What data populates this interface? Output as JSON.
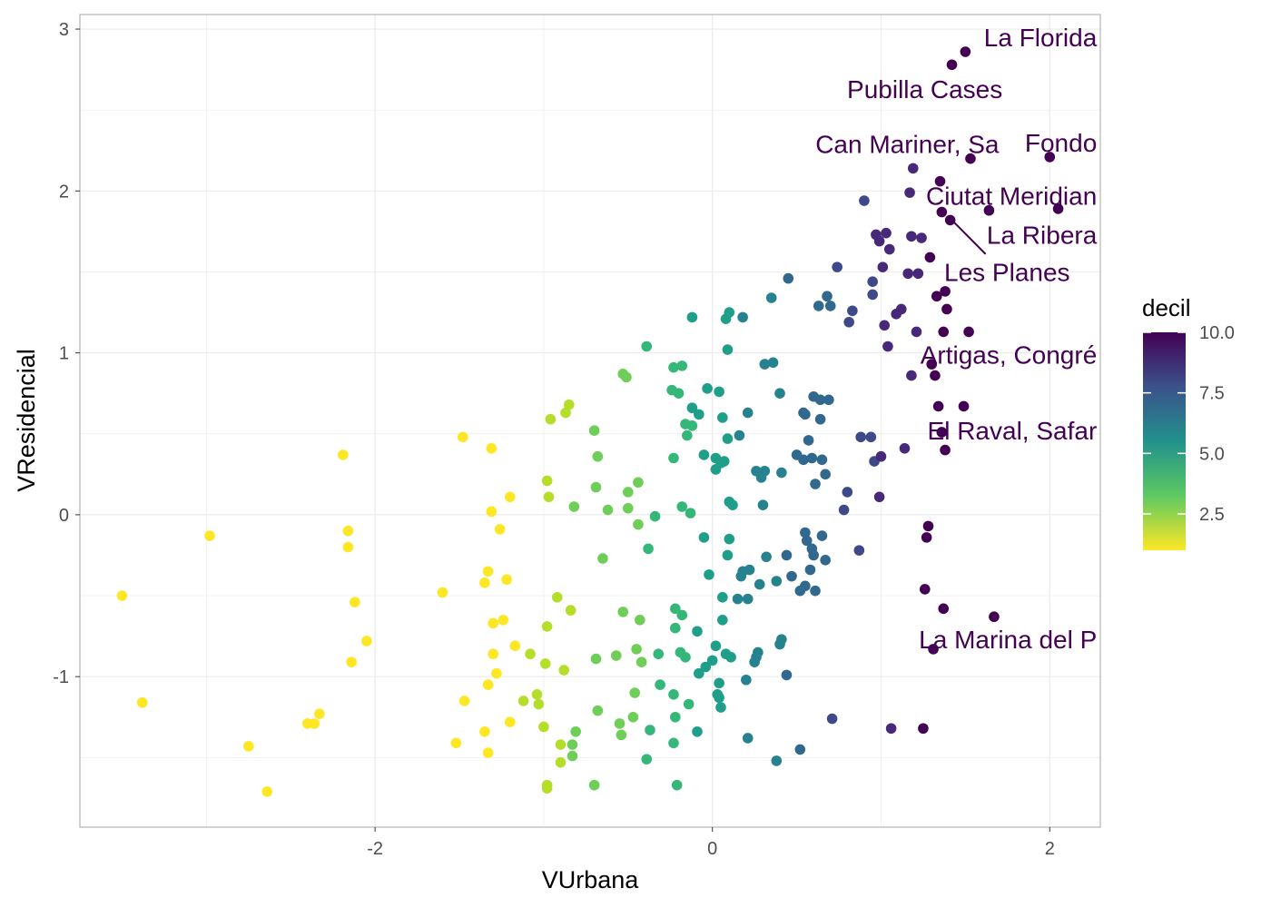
{
  "chart_data": {
    "type": "scatter",
    "xlabel": "VUrbana",
    "ylabel": "VResidencial",
    "xlim": [
      -3.75,
      2.3
    ],
    "ylim": [
      -1.93,
      3.09
    ],
    "x_ticks": [
      -2,
      0,
      2
    ],
    "x_tick_labels": [
      "-2",
      "0",
      "2"
    ],
    "y_ticks": [
      -1,
      0,
      1,
      2,
      3
    ],
    "y_tick_labels": [
      "-1",
      "0",
      "1",
      "2",
      "3"
    ],
    "grid": true,
    "color_variable": "decil",
    "color_range": [
      1,
      10
    ],
    "color_scale": "viridis (reversed)",
    "legend": {
      "title": "decil",
      "position": "right",
      "ticks": [
        10.0,
        7.5,
        5.0,
        2.5
      ],
      "tick_labels": [
        "10.0",
        "7.5",
        "5.0",
        "2.5"
      ]
    },
    "points": [
      [
        -3.5,
        -0.5,
        1
      ],
      [
        -3.38,
        -1.16,
        1
      ],
      [
        -2.98,
        -0.13,
        1
      ],
      [
        -2.75,
        -1.43,
        1
      ],
      [
        -2.64,
        -1.71,
        1
      ],
      [
        -2.4,
        -1.29,
        1
      ],
      [
        -2.36,
        -1.29,
        1
      ],
      [
        -2.33,
        -1.23,
        1
      ],
      [
        -2.19,
        0.37,
        1
      ],
      [
        -2.16,
        -0.1,
        1
      ],
      [
        -2.16,
        -0.2,
        1
      ],
      [
        -2.14,
        -0.91,
        1
      ],
      [
        -2.12,
        -0.54,
        1
      ],
      [
        -2.05,
        -0.78,
        1
      ],
      [
        -1.6,
        -0.48,
        1
      ],
      [
        -1.52,
        -1.41,
        1
      ],
      [
        -1.48,
        0.48,
        1
      ],
      [
        -1.47,
        -1.15,
        1
      ],
      [
        -1.35,
        -0.42,
        1
      ],
      [
        -1.35,
        -1.34,
        1
      ],
      [
        -1.33,
        -1.47,
        1
      ],
      [
        -1.33,
        -0.35,
        1
      ],
      [
        -1.33,
        -1.05,
        1
      ],
      [
        -1.31,
        0.02,
        1
      ],
      [
        -1.31,
        0.41,
        1
      ],
      [
        -1.3,
        -0.67,
        1
      ],
      [
        -1.3,
        -0.86,
        1
      ],
      [
        -1.28,
        -0.98,
        1
      ],
      [
        -1.26,
        -0.09,
        1
      ],
      [
        -1.24,
        -0.65,
        1
      ],
      [
        -1.22,
        -0.4,
        1
      ],
      [
        -1.2,
        0.11,
        1
      ],
      [
        -1.2,
        -1.28,
        1
      ],
      [
        -1.17,
        -0.81,
        1
      ],
      [
        -1.12,
        -1.15,
        2
      ],
      [
        -1.08,
        -0.86,
        2
      ],
      [
        -1.04,
        -1.11,
        2
      ],
      [
        -1.03,
        -1.17,
        2
      ],
      [
        -1.0,
        -1.31,
        2
      ],
      [
        -0.99,
        -0.92,
        2
      ],
      [
        -0.98,
        0.21,
        2
      ],
      [
        -0.98,
        -0.69,
        2
      ],
      [
        -0.98,
        -1.67,
        2
      ],
      [
        -0.98,
        -1.69,
        2
      ],
      [
        -0.97,
        0.11,
        2
      ],
      [
        -0.96,
        0.59,
        2
      ],
      [
        -0.92,
        -0.51,
        2
      ],
      [
        -0.9,
        -1.42,
        2
      ],
      [
        -0.9,
        -1.53,
        2
      ],
      [
        -0.88,
        -0.96,
        2
      ],
      [
        -0.87,
        0.63,
        2
      ],
      [
        -0.85,
        0.68,
        2
      ],
      [
        -0.84,
        -0.59,
        2
      ],
      [
        -0.83,
        -1.42,
        3
      ],
      [
        -0.83,
        -1.49,
        3
      ],
      [
        -0.82,
        0.05,
        3
      ],
      [
        -0.81,
        -1.34,
        3
      ],
      [
        -0.7,
        0.52,
        3
      ],
      [
        -0.7,
        -1.67,
        3
      ],
      [
        -0.69,
        -0.89,
        3
      ],
      [
        -0.69,
        0.17,
        3
      ],
      [
        -0.68,
        -1.21,
        3
      ],
      [
        -0.68,
        0.36,
        3
      ],
      [
        -0.65,
        -0.27,
        3
      ],
      [
        -0.62,
        0.03,
        3
      ],
      [
        -0.57,
        -0.87,
        3
      ],
      [
        -0.55,
        -1.29,
        3
      ],
      [
        -0.54,
        -1.36,
        3
      ],
      [
        -0.53,
        0.87,
        3
      ],
      [
        -0.53,
        -0.6,
        3
      ],
      [
        -0.51,
        0.85,
        3
      ],
      [
        -0.5,
        0.04,
        3
      ],
      [
        -0.5,
        0.14,
        3
      ],
      [
        -0.47,
        -1.25,
        3
      ],
      [
        -0.46,
        -1.1,
        3
      ],
      [
        -0.45,
        -0.83,
        3
      ],
      [
        -0.44,
        -0.06,
        3
      ],
      [
        -0.44,
        0.2,
        3
      ],
      [
        -0.43,
        -0.65,
        3
      ],
      [
        -0.42,
        -0.91,
        3
      ],
      [
        -0.39,
        1.04,
        4
      ],
      [
        -0.39,
        -1.51,
        4
      ],
      [
        -0.38,
        -0.21,
        4
      ],
      [
        -0.37,
        -1.33,
        4
      ],
      [
        -0.34,
        -0.01,
        4
      ],
      [
        -0.32,
        -0.86,
        4
      ],
      [
        -0.31,
        -1.05,
        4
      ],
      [
        -0.24,
        0.77,
        4
      ],
      [
        -0.23,
        0.35,
        4
      ],
      [
        -0.23,
        0.91,
        4
      ],
      [
        -0.23,
        -1.11,
        4
      ],
      [
        -0.23,
        -1.41,
        4
      ],
      [
        -0.22,
        -0.58,
        4
      ],
      [
        -0.22,
        -0.7,
        4
      ],
      [
        -0.22,
        -1.25,
        4
      ],
      [
        -0.21,
        -1.67,
        4
      ],
      [
        -0.2,
        0.75,
        4
      ],
      [
        -0.19,
        -0.85,
        4
      ],
      [
        -0.18,
        0.92,
        4
      ],
      [
        -0.18,
        -0.62,
        4
      ],
      [
        -0.18,
        0.05,
        4
      ],
      [
        -0.16,
        0.56,
        4
      ],
      [
        -0.16,
        -0.88,
        4
      ],
      [
        -0.15,
        0.49,
        4
      ],
      [
        -0.14,
        -1.17,
        4
      ],
      [
        -0.13,
        0.01,
        4
      ],
      [
        -0.12,
        0.55,
        4
      ],
      [
        -0.12,
        1.22,
        5
      ],
      [
        -0.12,
        0.66,
        5
      ],
      [
        -0.09,
        -0.72,
        5
      ],
      [
        -0.09,
        -1.34,
        5
      ],
      [
        -0.08,
        0.62,
        5
      ],
      [
        -0.08,
        -0.98,
        5
      ],
      [
        -0.05,
        -0.14,
        5
      ],
      [
        -0.05,
        0.37,
        5
      ],
      [
        -0.04,
        -0.94,
        5
      ],
      [
        -0.03,
        0.78,
        5
      ],
      [
        -0.02,
        -0.37,
        5
      ],
      [
        0.0,
        -0.9,
        5
      ],
      [
        0.02,
        0.35,
        5
      ],
      [
        0.02,
        0.28,
        5
      ],
      [
        0.02,
        -0.81,
        5
      ],
      [
        0.03,
        -1.11,
        5
      ],
      [
        0.04,
        -1.04,
        5
      ],
      [
        0.04,
        -1.13,
        5
      ],
      [
        0.04,
        0.76,
        5
      ],
      [
        0.05,
        -1.19,
        5
      ],
      [
        0.05,
        0.32,
        5
      ],
      [
        0.06,
        -0.51,
        5
      ],
      [
        0.06,
        -0.65,
        5
      ],
      [
        0.06,
        0.6,
        5
      ],
      [
        0.07,
        0.33,
        5
      ],
      [
        0.08,
        -0.86,
        5
      ],
      [
        0.08,
        1.21,
        5
      ],
      [
        0.09,
        0.47,
        5
      ],
      [
        0.09,
        -0.25,
        5
      ],
      [
        0.09,
        1.02,
        5
      ],
      [
        0.1,
        0.08,
        5
      ],
      [
        0.1,
        -0.15,
        5
      ],
      [
        0.1,
        1.25,
        5
      ],
      [
        0.11,
        -0.88,
        5
      ],
      [
        0.12,
        0.06,
        5
      ],
      [
        0.15,
        -0.52,
        6
      ],
      [
        0.16,
        0.49,
        6
      ],
      [
        0.17,
        -0.38,
        6
      ],
      [
        0.18,
        -0.35,
        6
      ],
      [
        0.18,
        1.22,
        6
      ],
      [
        0.2,
        -1.02,
        6
      ],
      [
        0.21,
        -1.38,
        6
      ],
      [
        0.21,
        0.63,
        6
      ],
      [
        0.21,
        -0.52,
        6
      ],
      [
        0.22,
        -0.34,
        6
      ],
      [
        0.25,
        -0.91,
        6
      ],
      [
        0.26,
        -0.88,
        6
      ],
      [
        0.26,
        0.27,
        6
      ],
      [
        0.27,
        -0.85,
        6
      ],
      [
        0.28,
        -0.43,
        6
      ],
      [
        0.29,
        0.23,
        6
      ],
      [
        0.3,
        0.06,
        6
      ],
      [
        0.31,
        0.93,
        6
      ],
      [
        0.31,
        0.27,
        6
      ],
      [
        0.32,
        -0.26,
        6
      ],
      [
        0.35,
        1.34,
        6
      ],
      [
        0.36,
        0.94,
        6
      ],
      [
        0.38,
        -0.41,
        6
      ],
      [
        0.38,
        -1.52,
        6
      ],
      [
        0.4,
        0.75,
        6
      ],
      [
        0.4,
        -0.8,
        6
      ],
      [
        0.41,
        -0.77,
        6
      ],
      [
        0.41,
        0.26,
        6
      ],
      [
        0.44,
        -0.25,
        7
      ],
      [
        0.44,
        -0.99,
        7
      ],
      [
        0.45,
        1.46,
        7
      ],
      [
        0.47,
        -0.38,
        7
      ],
      [
        0.5,
        0.37,
        7
      ],
      [
        0.52,
        -0.47,
        7
      ],
      [
        0.52,
        -1.45,
        7
      ],
      [
        0.54,
        0.34,
        7
      ],
      [
        0.54,
        0.63,
        7
      ],
      [
        0.55,
        -0.11,
        7
      ],
      [
        0.55,
        0.62,
        7
      ],
      [
        0.55,
        -0.44,
        7
      ],
      [
        0.56,
        -0.16,
        7
      ],
      [
        0.57,
        0.46,
        7
      ],
      [
        0.58,
        -0.34,
        7
      ],
      [
        0.59,
        -0.21,
        7
      ],
      [
        0.59,
        0.35,
        7
      ],
      [
        0.6,
        -0.25,
        7
      ],
      [
        0.6,
        0.73,
        7
      ],
      [
        0.61,
        -0.47,
        7
      ],
      [
        0.61,
        0.19,
        7
      ],
      [
        0.63,
        1.29,
        7
      ],
      [
        0.64,
        0.59,
        7
      ],
      [
        0.64,
        0.71,
        7
      ],
      [
        0.65,
        -0.13,
        7
      ],
      [
        0.65,
        0.34,
        7
      ],
      [
        0.67,
        0.25,
        7
      ],
      [
        0.67,
        -0.28,
        7
      ],
      [
        0.68,
        1.35,
        7
      ],
      [
        0.69,
        0.71,
        7
      ],
      [
        0.7,
        1.29,
        7
      ],
      [
        0.71,
        -1.26,
        8
      ],
      [
        0.74,
        1.53,
        8
      ],
      [
        0.78,
        0.03,
        8
      ],
      [
        0.8,
        0.14,
        8
      ],
      [
        0.81,
        1.19,
        8
      ],
      [
        0.83,
        1.26,
        8
      ],
      [
        0.87,
        -0.22,
        8
      ],
      [
        0.88,
        0.48,
        8
      ],
      [
        0.9,
        1.94,
        8
      ],
      [
        0.94,
        0.48,
        8
      ],
      [
        0.95,
        1.36,
        8
      ],
      [
        0.95,
        1.44,
        8
      ],
      [
        0.96,
        0.33,
        8
      ],
      [
        0.97,
        1.73,
        9
      ],
      [
        0.99,
        0.11,
        9
      ],
      [
        0.99,
        1.69,
        9
      ],
      [
        1.0,
        0.36,
        9
      ],
      [
        1.01,
        1.53,
        9
      ],
      [
        1.02,
        1.17,
        9
      ],
      [
        1.03,
        1.74,
        9
      ],
      [
        1.04,
        1.04,
        9
      ],
      [
        1.05,
        1.64,
        9
      ],
      [
        1.06,
        -1.32,
        9
      ],
      [
        1.09,
        1.24,
        9
      ],
      [
        1.12,
        1.27,
        9
      ],
      [
        1.14,
        0.41,
        9
      ],
      [
        1.16,
        1.49,
        9
      ],
      [
        1.17,
        1.99,
        9
      ],
      [
        1.18,
        0.86,
        9
      ],
      [
        1.18,
        1.72,
        9
      ],
      [
        1.19,
        2.14,
        9
      ],
      [
        1.21,
        1.13,
        9
      ],
      [
        1.22,
        1.49,
        9
      ],
      [
        1.24,
        1.71,
        9
      ],
      [
        1.25,
        -1.32,
        10
      ],
      [
        1.26,
        -0.46,
        10
      ],
      [
        1.27,
        -0.14,
        10
      ],
      [
        1.28,
        -0.07,
        10
      ],
      [
        1.29,
        1.59,
        10
      ],
      [
        1.3,
        0.93,
        10
      ],
      [
        1.31,
        -0.83,
        10
      ],
      [
        1.32,
        0.86,
        10
      ],
      [
        1.33,
        1.35,
        10
      ],
      [
        1.34,
        0.67,
        10
      ],
      [
        1.35,
        2.06,
        10
      ],
      [
        1.36,
        1.87,
        10
      ],
      [
        1.36,
        0.51,
        10
      ],
      [
        1.37,
        -0.58,
        10
      ],
      [
        1.37,
        1.13,
        10
      ],
      [
        1.38,
        0.4,
        10
      ],
      [
        1.38,
        1.38,
        10
      ],
      [
        1.39,
        1.27,
        10
      ],
      [
        1.41,
        1.82,
        10
      ],
      [
        1.42,
        2.78,
        10
      ],
      [
        1.49,
        0.67,
        10
      ],
      [
        1.5,
        2.86,
        10
      ],
      [
        1.52,
        1.13,
        10
      ],
      [
        1.53,
        2.2,
        10
      ],
      [
        1.64,
        1.88,
        10
      ],
      [
        1.67,
        -0.63,
        10
      ],
      [
        2.0,
        2.21,
        10
      ],
      [
        2.05,
        1.89,
        10
      ]
    ],
    "annotations": [
      {
        "text": "La Florida",
        "x": 2.28,
        "y": 2.95,
        "anchor": "end"
      },
      {
        "text": "Pubilla Cases",
        "x": 1.72,
        "y": 2.63,
        "anchor": "end"
      },
      {
        "text": "Can Mariner, Sa",
        "x": 1.7,
        "y": 2.29,
        "anchor": "end"
      },
      {
        "text": "Fondo",
        "x": 2.28,
        "y": 2.3,
        "anchor": "end"
      },
      {
        "text": "Ciutat Meridian",
        "x": 2.28,
        "y": 1.97,
        "anchor": "end"
      },
      {
        "text": "La Ribera",
        "x": 2.28,
        "y": 1.73,
        "anchor": "end"
      },
      {
        "text": "Les Planes",
        "x": 2.12,
        "y": 1.5,
        "anchor": "end"
      },
      {
        "text": "Artigas, Congré",
        "x": 2.28,
        "y": 0.99,
        "anchor": "end"
      },
      {
        "text": "El Raval, Safar",
        "x": 2.28,
        "y": 0.52,
        "anchor": "end"
      },
      {
        "text": "La Marina del P",
        "x": 2.28,
        "y": -0.77,
        "anchor": "end"
      }
    ],
    "annotation_segments": [
      {
        "x1": 1.42,
        "y1": 1.82,
        "x2": 1.62,
        "y2": 1.61
      }
    ],
    "annotation_color": "#440154"
  }
}
